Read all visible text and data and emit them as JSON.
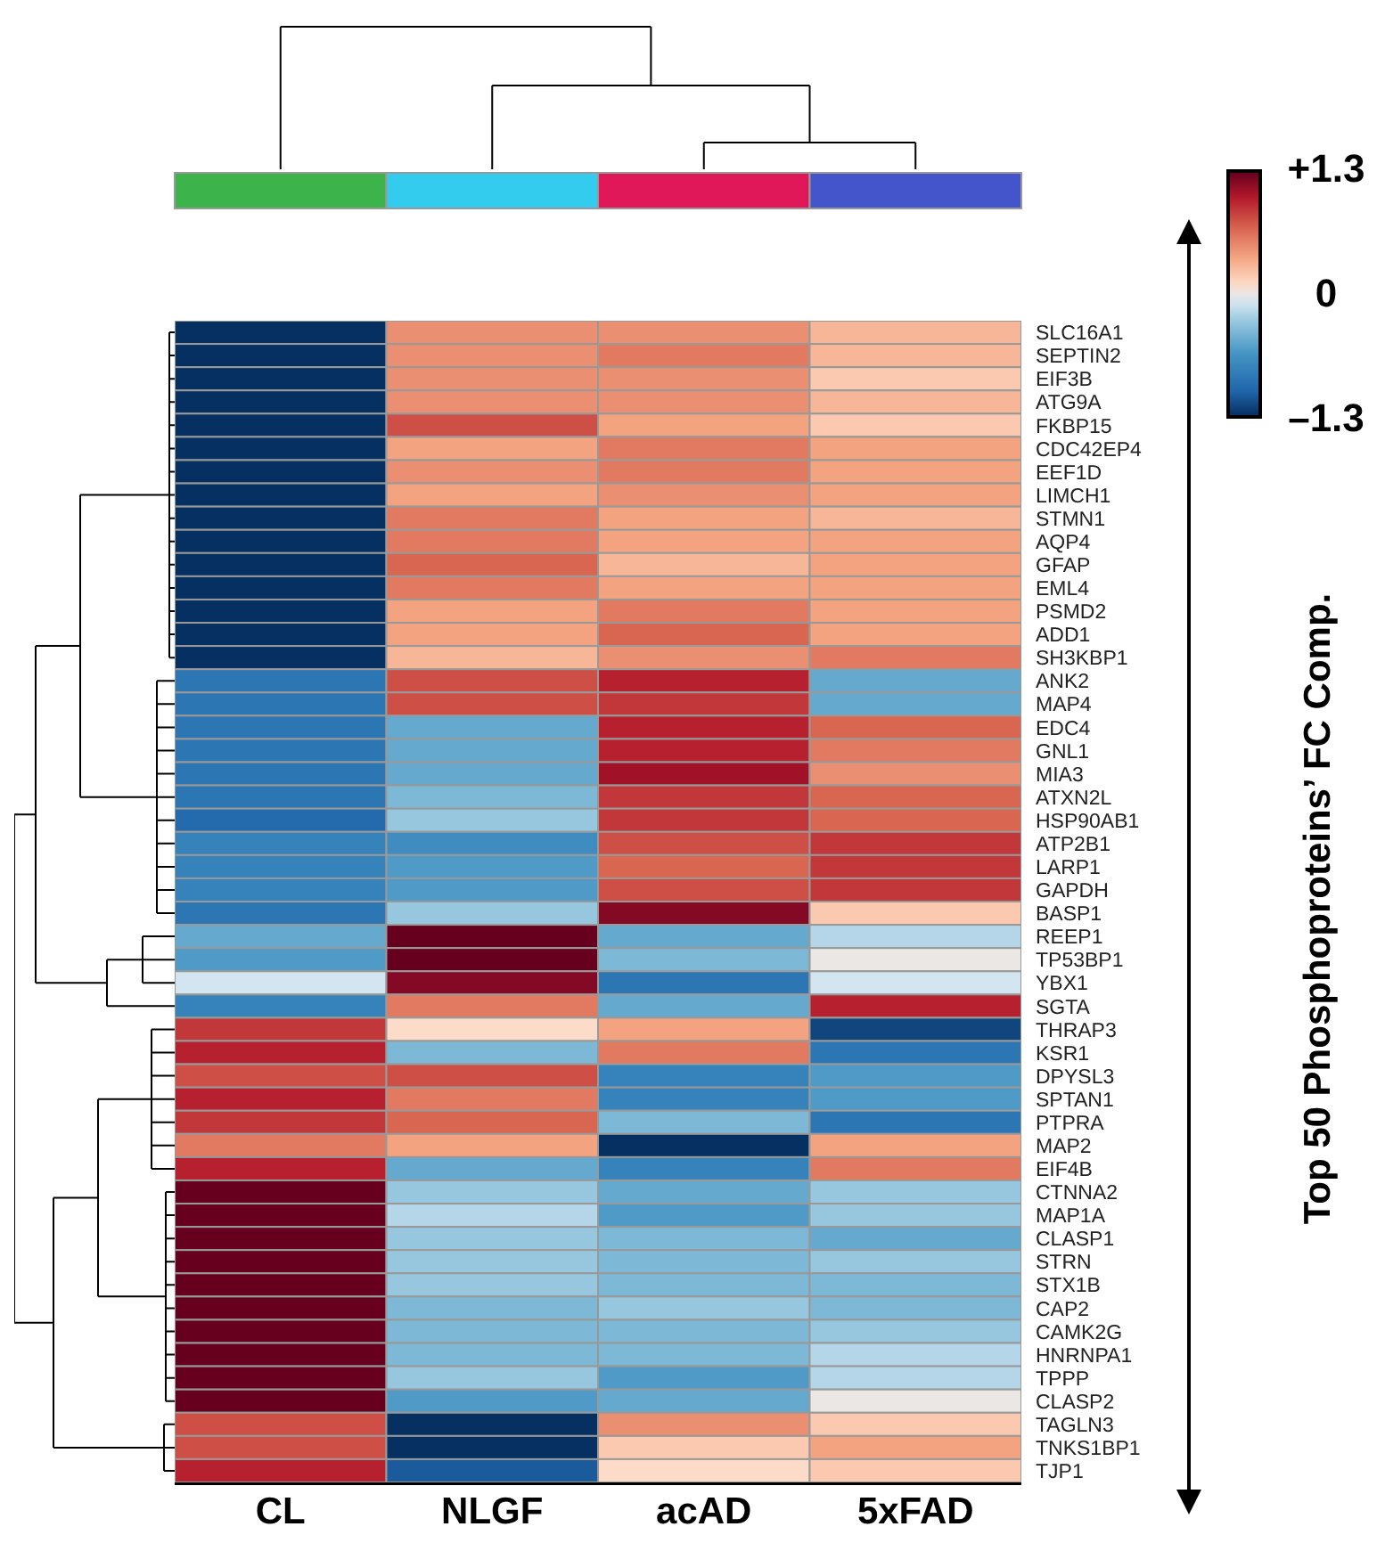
{
  "chart_data": {
    "type": "heatmap",
    "ylabel": "Top 50 Phosphoproteins’ FC Comp.",
    "categories": [
      "CL",
      "NLGF",
      "acAD",
      "5xFAD"
    ],
    "y_categories": [
      "SLC16A1",
      "SEPTIN2",
      "EIF3B",
      "ATG9A",
      "FKBP15",
      "CDC42EP4",
      "EEF1D",
      "LIMCH1",
      "STMN1",
      "AQP4",
      "GFAP",
      "EML4",
      "PSMD2",
      "ADD1",
      "SH3KBP1",
      "ANK2",
      "MAP4",
      "EDC4",
      "GNL1",
      "MIA3",
      "ATXN2L",
      "HSP90AB1",
      "ATP2B1",
      "LARP1",
      "GAPDH",
      "BASP1",
      "REEP1",
      "TP53BP1",
      "YBX1",
      "SGTA",
      "THRAP3",
      "KSR1",
      "DPYSL3",
      "SPTAN1",
      "PTPRA",
      "MAP2",
      "EIF4B",
      "CTNNA2",
      "MAP1A",
      "CLASP1",
      "STRN",
      "STX1B",
      "CAP2",
      "CAMK2G",
      "HNRNPA1",
      "TPPP",
      "CLASP2",
      "TAGLN3",
      "TNKS1BP1",
      "TJP1"
    ],
    "cells": [
      [
        -1.3,
        0.5,
        0.5,
        0.3
      ],
      [
        -1.3,
        0.5,
        0.6,
        0.3
      ],
      [
        -1.3,
        0.5,
        0.5,
        0.2
      ],
      [
        -1.3,
        0.5,
        0.5,
        0.3
      ],
      [
        -1.3,
        0.8,
        0.4,
        0.2
      ],
      [
        -1.3,
        0.4,
        0.6,
        0.4
      ],
      [
        -1.3,
        0.5,
        0.6,
        0.4
      ],
      [
        -1.3,
        0.4,
        0.5,
        0.4
      ],
      [
        -1.3,
        0.6,
        0.4,
        0.3
      ],
      [
        -1.3,
        0.6,
        0.4,
        0.4
      ],
      [
        -1.3,
        0.7,
        0.3,
        0.4
      ],
      [
        -1.3,
        0.6,
        0.4,
        0.4
      ],
      [
        -1.3,
        0.4,
        0.6,
        0.4
      ],
      [
        -1.3,
        0.4,
        0.7,
        0.4
      ],
      [
        -1.3,
        0.3,
        0.5,
        0.6
      ],
      [
        -0.9,
        0.8,
        1.0,
        -0.5
      ],
      [
        -0.9,
        0.8,
        0.9,
        -0.5
      ],
      [
        -0.9,
        -0.5,
        1.0,
        0.7
      ],
      [
        -0.9,
        -0.5,
        1.0,
        0.6
      ],
      [
        -0.9,
        -0.5,
        1.1,
        0.5
      ],
      [
        -0.9,
        -0.4,
        0.9,
        0.7
      ],
      [
        -1.0,
        -0.3,
        0.9,
        0.7
      ],
      [
        -0.8,
        -0.7,
        0.8,
        0.9
      ],
      [
        -0.8,
        -0.6,
        0.7,
        0.9
      ],
      [
        -0.8,
        -0.6,
        0.8,
        0.9
      ],
      [
        -0.9,
        -0.3,
        1.2,
        0.2
      ],
      [
        -0.5,
        1.3,
        -0.5,
        -0.2
      ],
      [
        -0.6,
        1.3,
        -0.4,
        0.0
      ],
      [
        -0.1,
        1.2,
        -0.9,
        -0.1
      ],
      [
        -0.8,
        0.6,
        -0.5,
        1.0
      ],
      [
        0.9,
        0.1,
        0.4,
        -1.2
      ],
      [
        1.0,
        -0.4,
        0.6,
        -0.9
      ],
      [
        0.8,
        0.8,
        -0.8,
        -0.6
      ],
      [
        1.0,
        0.6,
        -0.8,
        -0.6
      ],
      [
        0.9,
        0.7,
        -0.4,
        -0.9
      ],
      [
        0.6,
        0.4,
        -1.3,
        0.4
      ],
      [
        1.0,
        -0.5,
        -0.8,
        0.6
      ],
      [
        1.3,
        -0.3,
        -0.5,
        -0.3
      ],
      [
        1.3,
        -0.2,
        -0.6,
        -0.3
      ],
      [
        1.3,
        -0.3,
        -0.4,
        -0.5
      ],
      [
        1.3,
        -0.3,
        -0.4,
        -0.3
      ],
      [
        1.3,
        -0.3,
        -0.4,
        -0.4
      ],
      [
        1.3,
        -0.4,
        -0.3,
        -0.4
      ],
      [
        1.3,
        -0.4,
        -0.4,
        -0.3
      ],
      [
        1.3,
        -0.4,
        -0.4,
        -0.2
      ],
      [
        1.3,
        -0.3,
        -0.6,
        -0.2
      ],
      [
        1.3,
        -0.6,
        -0.5,
        0.0
      ],
      [
        0.8,
        -1.3,
        0.5,
        0.2
      ],
      [
        0.8,
        -1.3,
        0.2,
        0.4
      ],
      [
        1.0,
        -1.1,
        0.1,
        0.2
      ]
    ],
    "clim": [
      -1.3,
      1.3
    ],
    "cticks": [
      {
        "value": 1.3,
        "label": "+1.3"
      },
      0,
      {
        "value": -1.3,
        "label": "–1.3"
      }
    ]
  }
}
